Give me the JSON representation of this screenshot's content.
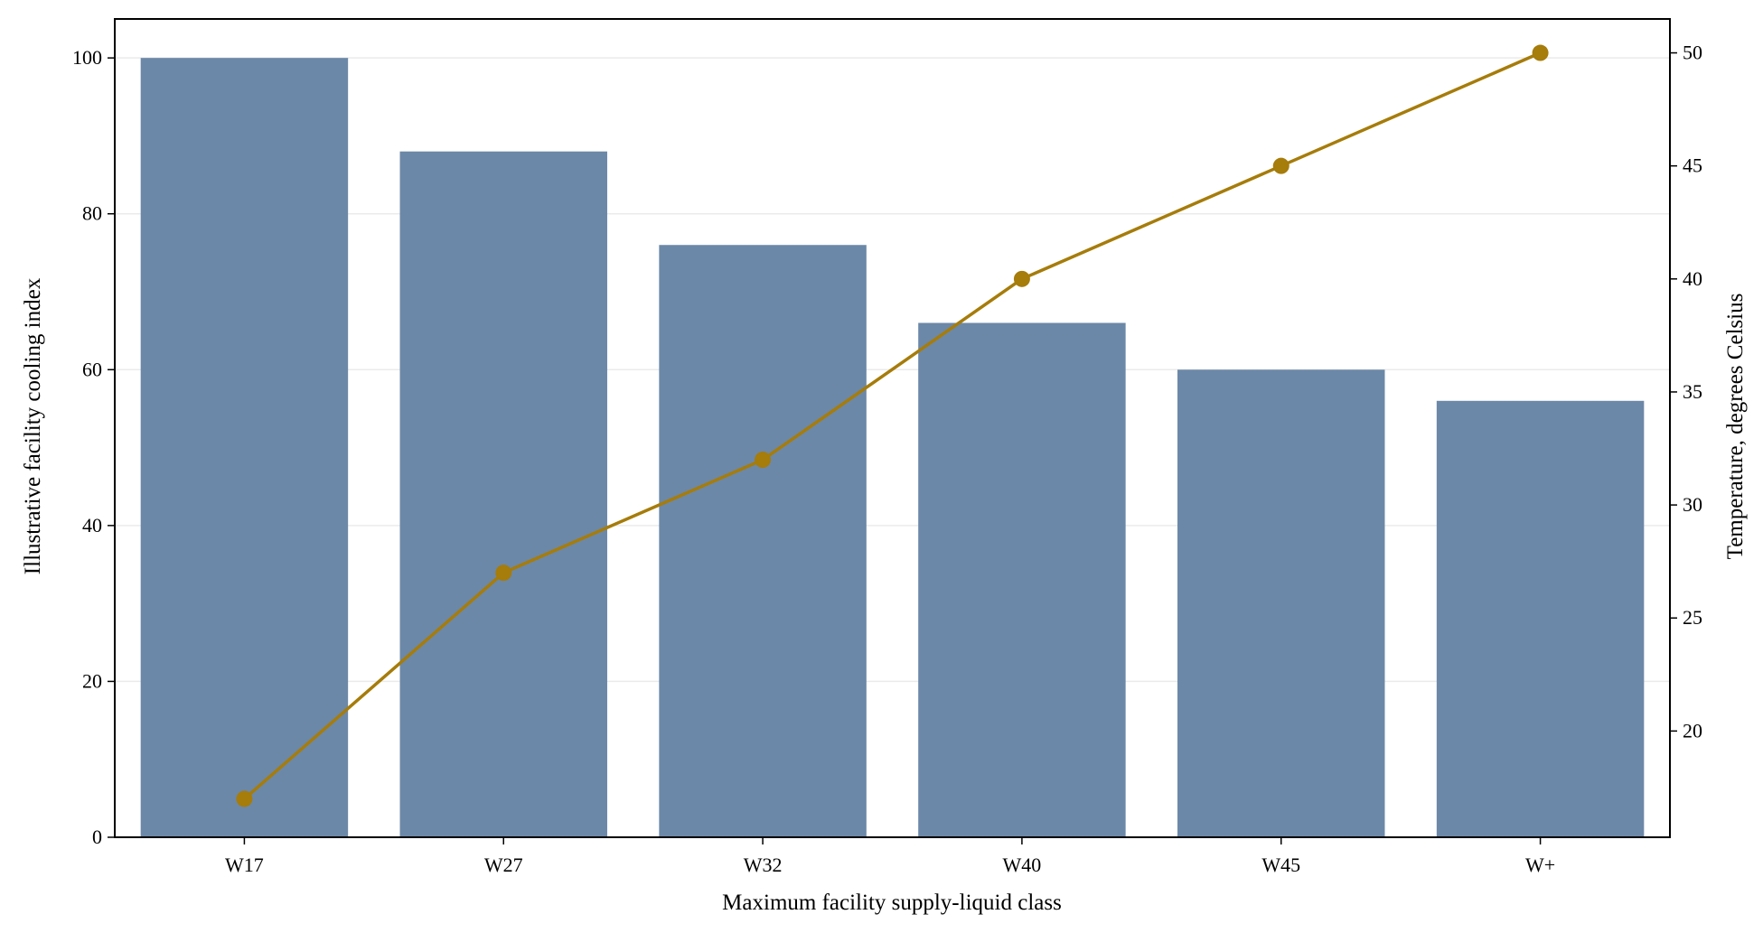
{
  "chart_data": {
    "type": "bar",
    "title": "",
    "xlabel": "Maximum facility supply-liquid class",
    "ylabel": "Illustrative facility cooling index",
    "y2label": "Temperature, degrees Celsius",
    "categories": [
      "W17",
      "W27",
      "W32",
      "W40",
      "W45",
      "W+"
    ],
    "series": [
      {
        "type": "bar",
        "axis": "left",
        "values": [
          100,
          88,
          76,
          66,
          60,
          56
        ],
        "color": "#6c88a8"
      },
      {
        "type": "line",
        "axis": "right",
        "values": [
          17,
          27,
          32,
          40,
          45,
          50
        ],
        "color": "#a67c0a",
        "marker": "circle"
      }
    ],
    "ylim": [
      0,
      105
    ],
    "y_ticks": [
      0,
      20,
      40,
      60,
      80,
      100
    ],
    "y2lim": [
      15.3,
      51.5
    ],
    "y2_ticks": [
      20,
      25,
      30,
      35,
      40,
      45,
      50
    ],
    "grid": "horizontal",
    "legend": "none"
  }
}
